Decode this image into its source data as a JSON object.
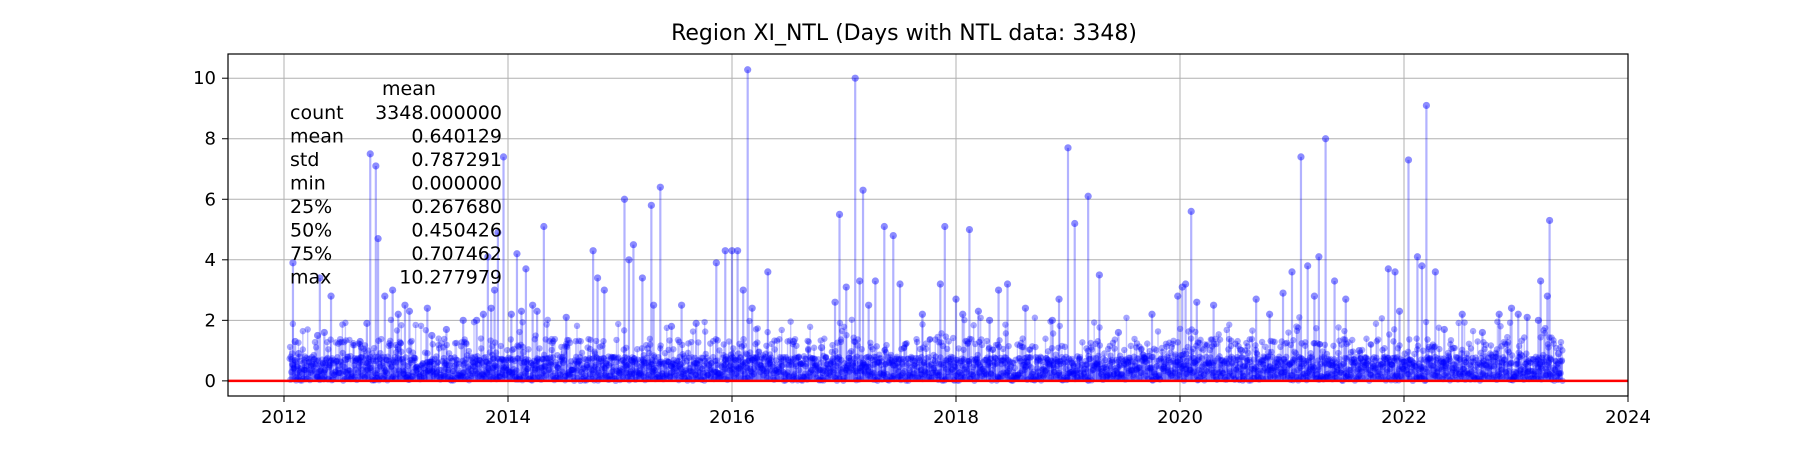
{
  "chart_data": {
    "type": "scatter",
    "title": "Region XI_NTL (Days with NTL data: 3348)",
    "xlabel": "",
    "ylabel": "",
    "xlim": [
      2011.5,
      2024
    ],
    "ylim": [
      -0.5,
      10.8
    ],
    "x_ticks": [
      "2012",
      "2014",
      "2016",
      "2018",
      "2020",
      "2022",
      "2024"
    ],
    "y_ticks": [
      "0",
      "2",
      "4",
      "6",
      "8",
      "10"
    ],
    "grid": true,
    "legend": "none",
    "baseline": {
      "y": 0,
      "color": "#ff0000"
    },
    "marker_color": "#0000ff",
    "stem_color": "#0000ff",
    "stats_table": {
      "header": "mean",
      "rows": [
        {
          "label": "count",
          "value": "3348.000000"
        },
        {
          "label": "mean",
          "value": "0.640129"
        },
        {
          "label": "std",
          "value": "0.787291"
        },
        {
          "label": "min",
          "value": "0.000000"
        },
        {
          "label": "25%",
          "value": "0.267680"
        },
        {
          "label": "50%",
          "value": "0.450426"
        },
        {
          "label": "75%",
          "value": "0.707462"
        },
        {
          "label": "max",
          "value": "10.277979"
        }
      ]
    },
    "series": [
      {
        "points": [
          [
            2012.08,
            3.9
          ],
          [
            2012.1,
            1.3
          ],
          [
            2012.13,
            0.9
          ],
          [
            2012.18,
            0.6
          ],
          [
            2012.3,
            1.5
          ],
          [
            2012.32,
            3.4
          ],
          [
            2012.36,
            1.6
          ],
          [
            2012.42,
            2.8
          ],
          [
            2012.55,
            0.7
          ],
          [
            2012.68,
            1.3
          ],
          [
            2012.74,
            1.9
          ],
          [
            2012.77,
            7.5
          ],
          [
            2012.82,
            7.1
          ],
          [
            2012.84,
            4.7
          ],
          [
            2012.9,
            2.8
          ],
          [
            2012.97,
            3.0
          ],
          [
            2013.02,
            2.2
          ],
          [
            2013.08,
            2.5
          ],
          [
            2013.12,
            2.3
          ],
          [
            2013.28,
            2.4
          ],
          [
            2013.32,
            1.5
          ],
          [
            2013.45,
            1.7
          ],
          [
            2013.6,
            2.0
          ],
          [
            2013.72,
            2.0
          ],
          [
            2013.78,
            2.2
          ],
          [
            2013.82,
            4.1
          ],
          [
            2013.85,
            2.4
          ],
          [
            2013.88,
            3.0
          ],
          [
            2013.91,
            4.9
          ],
          [
            2013.96,
            7.4
          ],
          [
            2014.03,
            2.2
          ],
          [
            2014.08,
            4.2
          ],
          [
            2014.12,
            2.3
          ],
          [
            2014.16,
            3.7
          ],
          [
            2014.22,
            2.5
          ],
          [
            2014.26,
            2.3
          ],
          [
            2014.32,
            5.1
          ],
          [
            2014.52,
            2.1
          ],
          [
            2014.76,
            4.3
          ],
          [
            2014.8,
            3.4
          ],
          [
            2014.86,
            3.0
          ],
          [
            2015.04,
            6.0
          ],
          [
            2015.08,
            4.0
          ],
          [
            2015.12,
            4.5
          ],
          [
            2015.2,
            3.4
          ],
          [
            2015.28,
            5.8
          ],
          [
            2015.3,
            2.5
          ],
          [
            2015.36,
            6.4
          ],
          [
            2015.46,
            1.8
          ],
          [
            2015.55,
            2.5
          ],
          [
            2015.68,
            1.9
          ],
          [
            2015.86,
            3.9
          ],
          [
            2015.94,
            4.3
          ],
          [
            2016.0,
            4.3
          ],
          [
            2016.05,
            4.3
          ],
          [
            2016.1,
            3.0
          ],
          [
            2016.14,
            10.28
          ],
          [
            2016.18,
            2.4
          ],
          [
            2016.32,
            3.6
          ],
          [
            2016.55,
            1.3
          ],
          [
            2016.8,
            1.1
          ],
          [
            2016.92,
            2.6
          ],
          [
            2016.96,
            5.5
          ],
          [
            2017.02,
            3.1
          ],
          [
            2017.1,
            10.0
          ],
          [
            2017.14,
            3.3
          ],
          [
            2017.17,
            6.3
          ],
          [
            2017.22,
            2.5
          ],
          [
            2017.28,
            3.3
          ],
          [
            2017.36,
            5.1
          ],
          [
            2017.44,
            4.8
          ],
          [
            2017.5,
            3.2
          ],
          [
            2017.7,
            2.2
          ],
          [
            2017.86,
            3.2
          ],
          [
            2017.9,
            5.1
          ],
          [
            2018.0,
            2.7
          ],
          [
            2018.06,
            2.2
          ],
          [
            2018.12,
            5.0
          ],
          [
            2018.2,
            2.3
          ],
          [
            2018.3,
            2.0
          ],
          [
            2018.38,
            3.0
          ],
          [
            2018.46,
            3.2
          ],
          [
            2018.62,
            2.4
          ],
          [
            2018.86,
            2.0
          ],
          [
            2018.92,
            2.7
          ],
          [
            2019.0,
            7.7
          ],
          [
            2019.06,
            5.2
          ],
          [
            2019.18,
            6.1
          ],
          [
            2019.28,
            3.5
          ],
          [
            2019.45,
            1.6
          ],
          [
            2019.75,
            2.2
          ],
          [
            2019.98,
            2.8
          ],
          [
            2020.02,
            3.1
          ],
          [
            2020.05,
            3.2
          ],
          [
            2020.1,
            5.6
          ],
          [
            2020.15,
            2.6
          ],
          [
            2020.3,
            2.5
          ],
          [
            2020.55,
            1.0
          ],
          [
            2020.68,
            2.7
          ],
          [
            2020.8,
            2.2
          ],
          [
            2020.92,
            2.9
          ],
          [
            2021.0,
            3.6
          ],
          [
            2021.08,
            7.4
          ],
          [
            2021.14,
            3.8
          ],
          [
            2021.2,
            2.8
          ],
          [
            2021.24,
            4.1
          ],
          [
            2021.3,
            8.0
          ],
          [
            2021.38,
            3.3
          ],
          [
            2021.48,
            2.7
          ],
          [
            2021.6,
            1.0
          ],
          [
            2021.86,
            3.7
          ],
          [
            2021.92,
            3.6
          ],
          [
            2021.96,
            2.3
          ],
          [
            2022.04,
            7.3
          ],
          [
            2022.12,
            4.1
          ],
          [
            2022.16,
            3.8
          ],
          [
            2022.2,
            9.1
          ],
          [
            2022.28,
            3.6
          ],
          [
            2022.36,
            1.7
          ],
          [
            2022.52,
            2.2
          ],
          [
            2022.7,
            1.6
          ],
          [
            2022.85,
            2.2
          ],
          [
            2022.96,
            2.4
          ],
          [
            2023.02,
            2.2
          ],
          [
            2023.1,
            2.1
          ],
          [
            2023.2,
            2.0
          ],
          [
            2023.22,
            3.3
          ],
          [
            2023.28,
            2.8
          ],
          [
            2023.3,
            5.3
          ],
          [
            2023.38,
            0.9
          ]
        ],
        "background_points": 3228,
        "background_range": [
          2012.05,
          2023.42
        ]
      }
    ]
  }
}
